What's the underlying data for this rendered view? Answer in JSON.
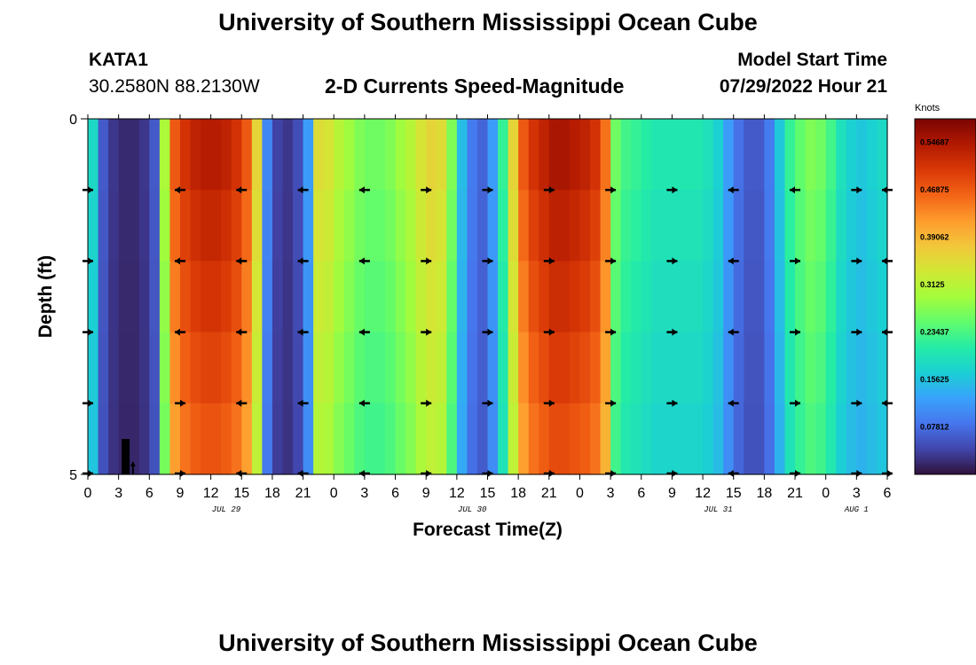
{
  "header": {
    "title": "University of Southern Mississippi Ocean Cube",
    "station_id": "KATA1",
    "station_coords": "30.2580N  88.2130W",
    "plot_title": "2-D Currents Speed-Magnitude",
    "model_start_label": "Model Start Time",
    "model_start_value": "07/29/2022 Hour 21"
  },
  "footer": {
    "title": "University of Southern Mississippi Ocean Cube"
  },
  "chart_data": {
    "type": "heatmap",
    "title": "2-D Currents Speed-Magnitude",
    "xlabel": "Forecast Time(Z)",
    "ylabel": "Depth (ft)",
    "y_ticks": [
      "0",
      "5"
    ],
    "ylim": [
      0,
      5
    ],
    "x_tick_labels": [
      "0",
      "3",
      "6",
      "9",
      "12",
      "15",
      "18",
      "21",
      "0",
      "3",
      "6",
      "9",
      "12",
      "15",
      "18",
      "21",
      "0",
      "3",
      "6",
      "9",
      "12",
      "15",
      "18",
      "21",
      "0",
      "3",
      "6"
    ],
    "date_labels": [
      {
        "text": "JUL 29",
        "hour_index": 4.5
      },
      {
        "text": "JUL 30",
        "hour_index": 12.5
      },
      {
        "text": "JUL 31",
        "hour_index": 20.5
      },
      {
        "text": "AUG 1",
        "hour_index": 25
      }
    ],
    "forecast_hours": 78,
    "colorbar": {
      "label": "Knots",
      "min": 0,
      "max": 0.5859,
      "tick_values": [
        0.07812,
        0.15625,
        0.23437,
        0.3125,
        0.39062,
        0.46875,
        0.54687
      ],
      "tick_labels": [
        "0.07812",
        "0.15625",
        "0.23437",
        "0.3125",
        "0.39062",
        "0.46875",
        "0.54687"
      ]
    },
    "speed_profile_knots": [
      0.18,
      0.06,
      0.03,
      0.02,
      0.02,
      0.03,
      0.06,
      0.3,
      0.47,
      0.51,
      0.53,
      0.54,
      0.54,
      0.53,
      0.51,
      0.47,
      0.36,
      0.1,
      0.04,
      0.03,
      0.05,
      0.12,
      0.35,
      0.34,
      0.31,
      0.29,
      0.27,
      0.26,
      0.26,
      0.27,
      0.29,
      0.31,
      0.34,
      0.36,
      0.35,
      0.27,
      0.15,
      0.09,
      0.07,
      0.12,
      0.22,
      0.36,
      0.47,
      0.51,
      0.53,
      0.55,
      0.55,
      0.54,
      0.53,
      0.51,
      0.45,
      0.26,
      0.23,
      0.22,
      0.21,
      0.2,
      0.2,
      0.2,
      0.2,
      0.2,
      0.19,
      0.17,
      0.12,
      0.08,
      0.06,
      0.06,
      0.09,
      0.16,
      0.22,
      0.25,
      0.27,
      0.26,
      0.23,
      0.19,
      0.17,
      0.16,
      0.17,
      0.18
    ],
    "arrow_rows_depth_ft": [
      1,
      2,
      3,
      4,
      5
    ],
    "arrow_columns_hour": [
      0,
      9,
      15,
      21,
      27,
      33,
      39,
      45,
      51,
      57,
      63,
      69,
      75,
      78
    ],
    "arrow_directions": [
      [
        1,
        -1,
        -1,
        -1,
        -1,
        1,
        1,
        1,
        1,
        1,
        -1,
        -1,
        1,
        -1
      ],
      [
        1,
        -1,
        -1,
        -1,
        -1,
        1,
        1,
        1,
        1,
        1,
        -1,
        1,
        1,
        -1
      ],
      [
        1,
        -1,
        -1,
        -1,
        -1,
        1,
        1,
        1,
        1,
        1,
        -1,
        1,
        1,
        -1
      ],
      [
        1,
        1,
        -1,
        -1,
        -1,
        1,
        1,
        1,
        1,
        1,
        -1,
        1,
        1,
        -1
      ],
      [
        1,
        1,
        -1,
        -1,
        -1,
        1,
        1,
        1,
        1,
        1,
        -1,
        1,
        1,
        1
      ]
    ],
    "colors": {
      "scale": [
        "#30123b",
        "#4145ab",
        "#4675ed",
        "#39a2fc",
        "#1bcfd4",
        "#24eca6",
        "#61fc6c",
        "#a4fc3b",
        "#d1e834",
        "#f3c63a",
        "#fe9b2d",
        "#f36315",
        "#d93806",
        "#b11901",
        "#7a0403"
      ],
      "arrow": "#000000",
      "frame": "#000000"
    }
  }
}
